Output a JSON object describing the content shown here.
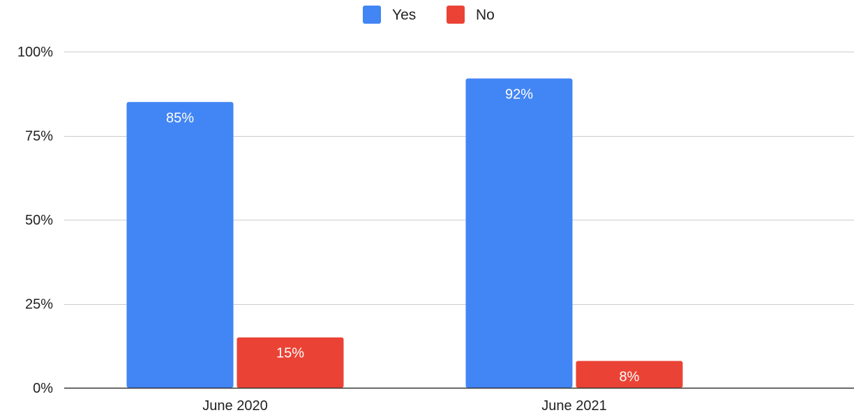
{
  "chart_data": {
    "type": "bar",
    "categories": [
      "June 2020",
      "June 2021"
    ],
    "series": [
      {
        "name": "Yes",
        "color": "#4285f4",
        "values": [
          85,
          92
        ],
        "labels": [
          "85%",
          "92%"
        ]
      },
      {
        "name": "No",
        "color": "#ea4335",
        "values": [
          15,
          8
        ],
        "labels": [
          "15%",
          "8%"
        ]
      }
    ],
    "ylim": [
      0,
      100
    ],
    "yticks": [
      0,
      25,
      50,
      75,
      100
    ],
    "ytick_labels": [
      "0%",
      "25%",
      "50%",
      "75%",
      "100%"
    ],
    "legend": "top-center",
    "grid": true
  }
}
